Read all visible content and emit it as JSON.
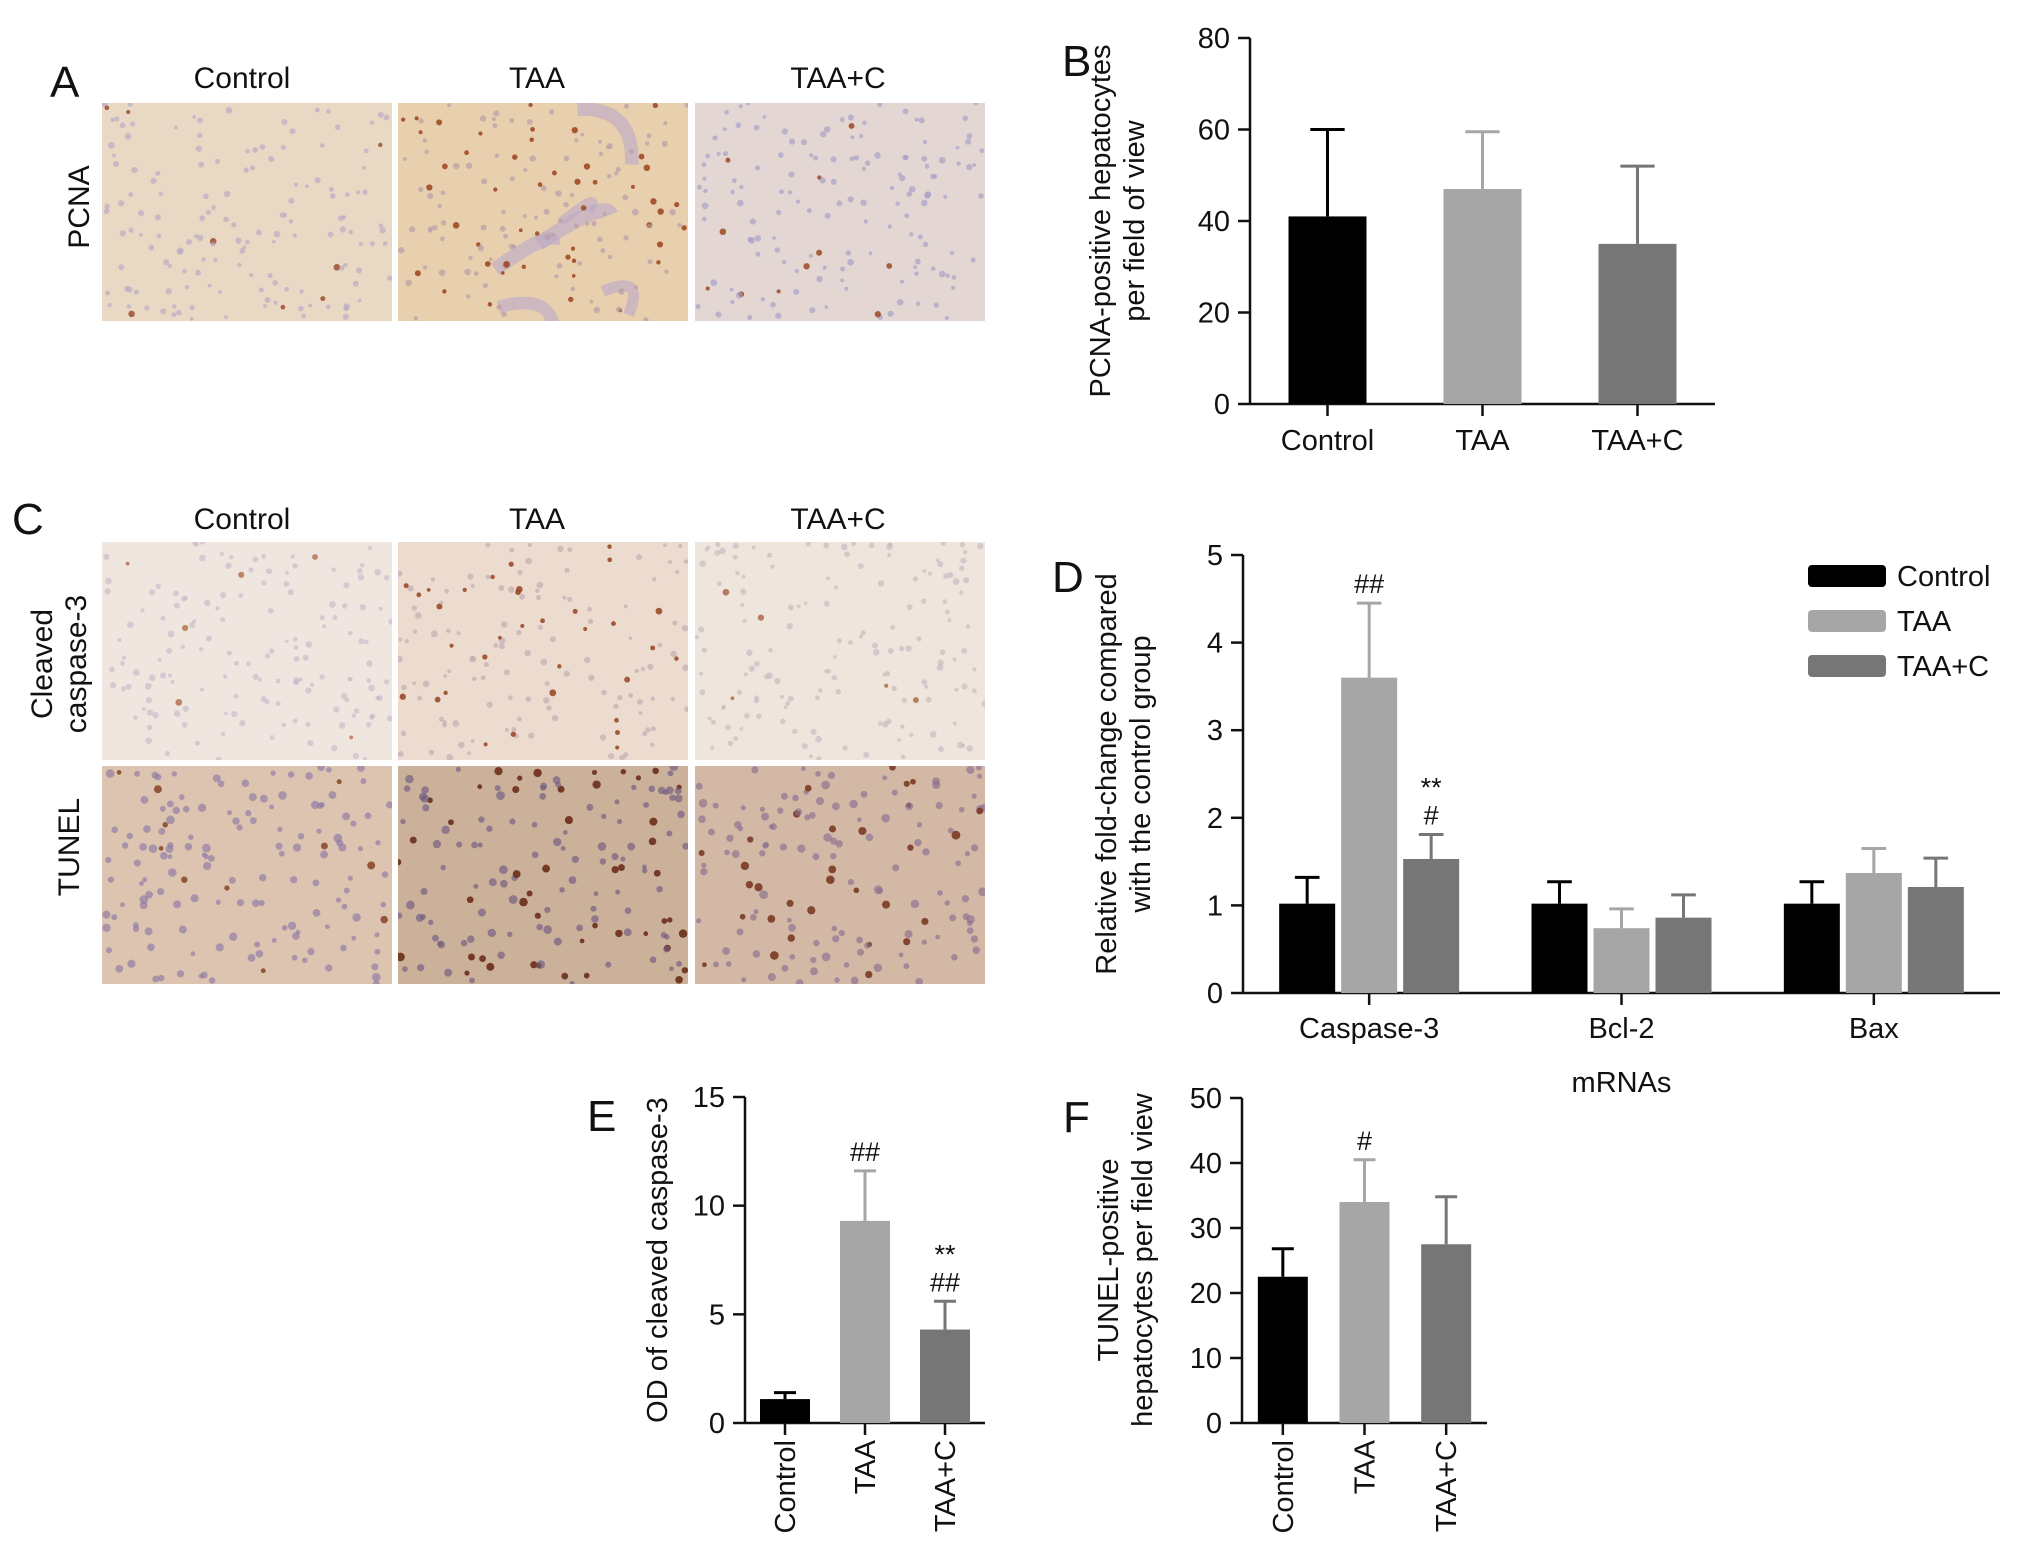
{
  "panels": {
    "A": {
      "letter": "A",
      "columns": [
        "Control",
        "TAA",
        "TAA+C"
      ],
      "row_label": "PCNA"
    },
    "C": {
      "letter": "C",
      "columns": [
        "Control",
        "TAA",
        "TAA+C"
      ],
      "row_labels": [
        "Cleaved caspase-3",
        "TUNEL"
      ],
      "row1_line1": "Cleaved",
      "row1_line2": "caspase-3",
      "row2": "TUNEL"
    }
  },
  "chart_data": [
    {
      "id": "B",
      "letter": "B",
      "type": "bar",
      "categories": [
        "Control",
        "TAA",
        "TAA+C"
      ],
      "values": [
        41,
        47,
        35
      ],
      "errors": [
        19,
        12.5,
        17
      ],
      "colors": [
        "#000000",
        "#a6a6a6",
        "#767676"
      ],
      "ylabel_lines": [
        "PCNA-positive hepatocytes",
        "per field of view"
      ],
      "ylim": [
        0,
        80
      ],
      "yticks": [
        0,
        20,
        40,
        60,
        80
      ],
      "xlabel": "",
      "annotations": [
        "",
        "",
        ""
      ]
    },
    {
      "id": "D",
      "letter": "D",
      "type": "bar",
      "categories": [
        "Caspase-3",
        "Bcl-2",
        "Bax"
      ],
      "series": [
        {
          "name": "Control",
          "color": "#000000",
          "values": [
            1.02,
            1.02,
            1.02
          ],
          "errors": [
            0.3,
            0.25,
            0.25
          ]
        },
        {
          "name": "TAA",
          "color": "#a6a6a6",
          "values": [
            3.6,
            0.74,
            1.37
          ],
          "errors": [
            0.85,
            0.22,
            0.28
          ]
        },
        {
          "name": "TAA+C",
          "color": "#767676",
          "values": [
            1.53,
            0.86,
            1.21
          ],
          "errors": [
            0.28,
            0.26,
            0.33
          ]
        }
      ],
      "annotations": [
        {
          "category": "Caspase-3",
          "series": "TAA",
          "lines": [
            "##"
          ]
        },
        {
          "category": "Caspase-3",
          "series": "TAA+C",
          "lines": [
            "**",
            "#"
          ]
        }
      ],
      "ylabel_lines": [
        "Relative fold-change compared",
        "with the control group"
      ],
      "xlabel": "mRNAs",
      "ylim": [
        0,
        5
      ],
      "yticks": [
        0,
        1,
        2,
        3,
        4,
        5
      ],
      "legend_position": "top-right"
    },
    {
      "id": "E",
      "letter": "E",
      "type": "bar",
      "categories": [
        "Control",
        "TAA",
        "TAA+C"
      ],
      "values": [
        1.1,
        9.3,
        4.3
      ],
      "errors": [
        0.3,
        2.3,
        1.3
      ],
      "colors": [
        "#000000",
        "#a6a6a6",
        "#767676"
      ],
      "ylabel_lines": [
        "OD of cleaved caspase-3"
      ],
      "ylim": [
        0,
        15
      ],
      "yticks": [
        0,
        5,
        10,
        15
      ],
      "xlabel": "",
      "annotations": [
        "",
        "##",
        "**|##"
      ]
    },
    {
      "id": "F",
      "letter": "F",
      "type": "bar",
      "categories": [
        "Control",
        "TAA",
        "TAA+C"
      ],
      "values": [
        22.5,
        34,
        27.5
      ],
      "errors": [
        4.3,
        6.5,
        7.3
      ],
      "colors": [
        "#000000",
        "#a6a6a6",
        "#767676"
      ],
      "ylabel_lines": [
        "TUNEL-positive",
        "hepatocytes per field view"
      ],
      "ylim": [
        0,
        50
      ],
      "yticks": [
        0,
        10,
        20,
        30,
        40,
        50
      ],
      "xlabel": "",
      "annotations": [
        "",
        "#",
        ""
      ]
    }
  ]
}
